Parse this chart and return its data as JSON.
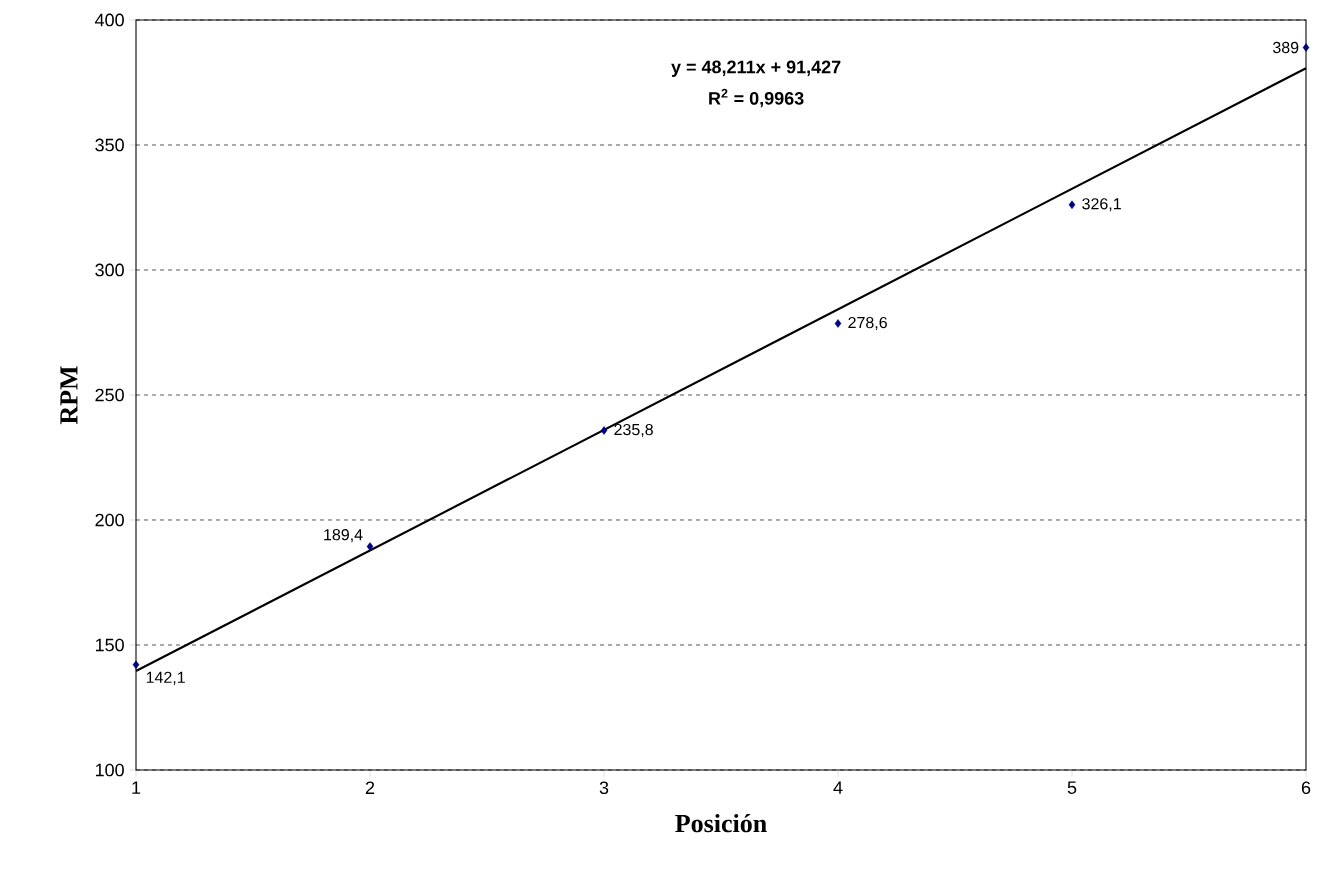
{
  "chart_data": {
    "type": "scatter",
    "xlabel": "Posición",
    "ylabel": "RPM",
    "x": [
      1,
      2,
      3,
      4,
      5,
      6
    ],
    "xlim": [
      1,
      6
    ],
    "xticks": [
      1,
      2,
      3,
      4,
      5,
      6
    ],
    "ylim": [
      100,
      400
    ],
    "yticks": [
      100,
      150,
      200,
      250,
      300,
      350,
      400
    ],
    "grid": "y",
    "annotations": [
      "y = 48,211x + 91,427",
      "R$^{2}$ = 0,9963"
    ],
    "series": [
      {
        "color": "#000080",
        "marker": "diamond",
        "values": [
          142.1,
          189.4,
          235.8,
          278.6,
          326.1,
          389
        ],
        "value_labels": [
          "142,1",
          "189,4",
          "235,8",
          "278,6",
          "326,1",
          "389"
        ]
      },
      {
        "type": "line",
        "color": "#000000",
        "marker": "none",
        "x": [
          1,
          6
        ],
        "values": [
          139.6,
          380.7
        ]
      }
    ]
  }
}
